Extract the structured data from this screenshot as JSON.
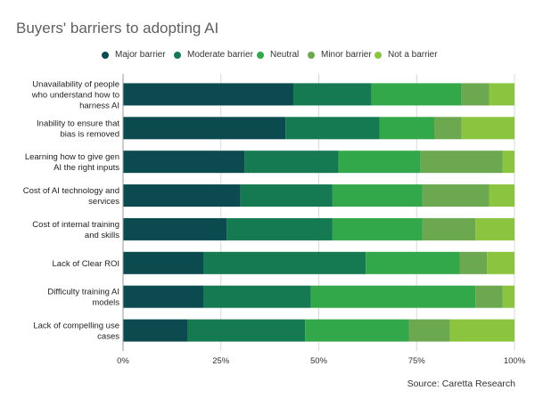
{
  "title": "Buyers' barriers to adopting AI",
  "source": "Source: Caretta Research",
  "chart_data": {
    "type": "bar",
    "orientation": "horizontal",
    "stacked": true,
    "title": "Buyers' barriers to adopting AI",
    "legend_position": "top",
    "x_axis_range": [
      0,
      100
    ],
    "x_ticks": [
      "0%",
      "25%",
      "50%",
      "75%",
      "100%"
    ],
    "grid": true,
    "categories": [
      [
        "Unavailability of people",
        "who understand how to",
        "harness AI"
      ],
      [
        "Inability to ensure that",
        "bias is removed"
      ],
      [
        "Learning how to give gen",
        "AI the right inputs"
      ],
      [
        "Cost of AI technology and",
        "services"
      ],
      [
        "Cost of internal training",
        "and skills"
      ],
      [
        "Lack of Clear ROI"
      ],
      [
        "Difficulty training AI",
        "models"
      ],
      [
        "Lack of compelling use",
        "cases"
      ]
    ],
    "series": [
      {
        "name": "Major barrier",
        "color": "#0b4b4f",
        "values": [
          43.5,
          41.5,
          31,
          30,
          26.5,
          20.5,
          20.5,
          16.5
        ]
      },
      {
        "name": "Moderate barrier",
        "color": "#157a52",
        "values": [
          20,
          24,
          24,
          23.5,
          27,
          41.5,
          27.5,
          30
        ]
      },
      {
        "name": "Neutral",
        "color": "#33a84a",
        "values": [
          23,
          14,
          21,
          23,
          23,
          24,
          42,
          26.5
        ]
      },
      {
        "name": "Minor barrier",
        "color": "#6ba850",
        "values": [
          7,
          7,
          21,
          17,
          13.5,
          7,
          7,
          10.5
        ]
      },
      {
        "name": "Not a barrier",
        "color": "#8bc53f",
        "values": [
          6.5,
          13.5,
          3,
          6.5,
          10,
          7,
          3,
          16.5
        ]
      }
    ]
  }
}
